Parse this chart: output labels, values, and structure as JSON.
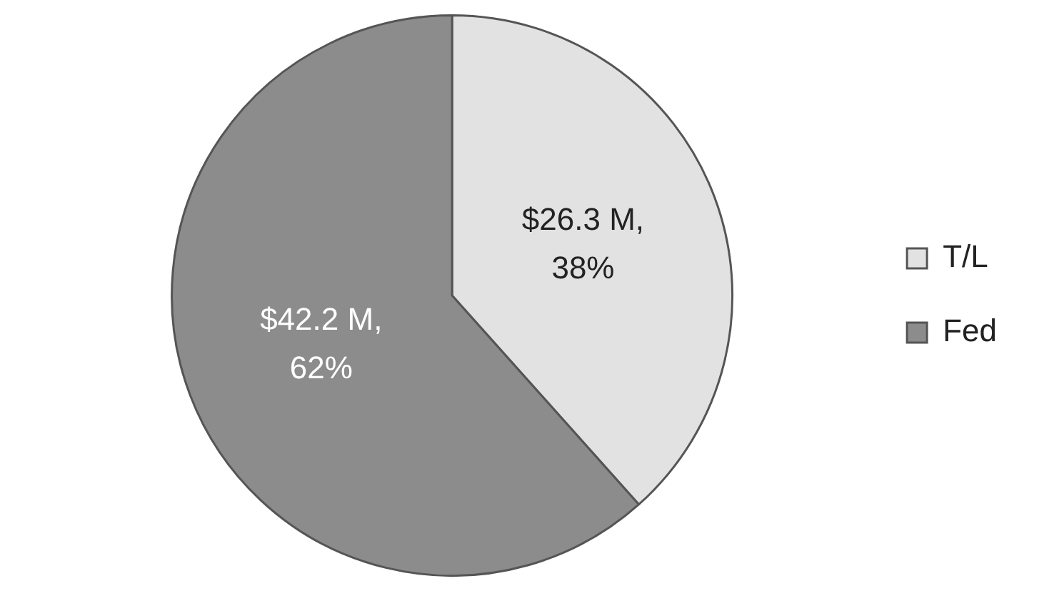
{
  "chart_data": {
    "type": "pie",
    "categories": [
      "T/L",
      "Fed"
    ],
    "values": [
      26.3,
      42.2
    ],
    "colors": [
      "#e2e2e2",
      "#8c8c8c"
    ],
    "value_labels": [
      "$26.3 M, 38%",
      "$42.2 M, 62%"
    ],
    "legend": "right"
  }
}
